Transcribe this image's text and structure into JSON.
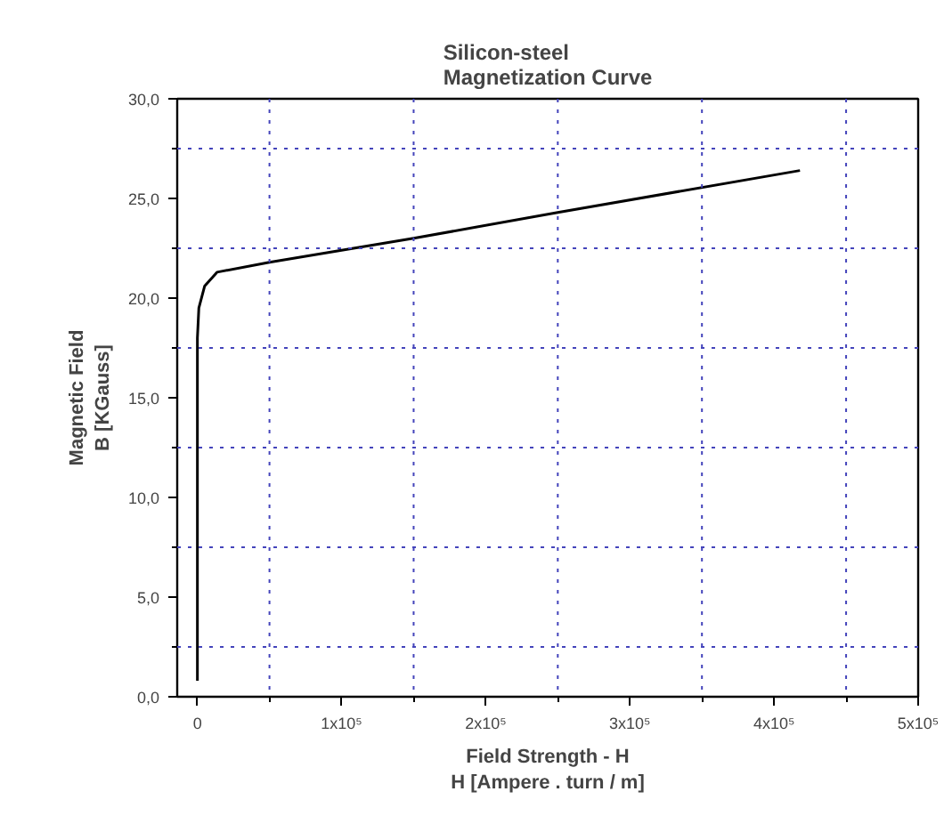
{
  "chart_data": {
    "type": "line",
    "title": "Silicon-steel\nMagnetization Curve",
    "xlabel": "Field Strength - H\nH [Ampere . turn / m]",
    "ylabel": "Magnetic Field\nB [KGauss]",
    "x": [
      0,
      0,
      0,
      1000,
      5000,
      13600,
      50000,
      150000,
      250000,
      418000
    ],
    "series": [
      {
        "color": "#000000",
        "values": [
          0.8,
          10,
          18,
          19.5,
          20.6,
          21.3,
          21.8,
          23.0,
          24.3,
          26.4
        ]
      }
    ],
    "xlim": [
      -14000,
      500000
    ],
    "ylim": [
      0,
      30
    ],
    "xticks": [
      0,
      {
        "value": 50000,
        "label": null
      },
      {
        "value": 100000,
        "label": "1x10⁵"
      },
      {
        "value": 150000,
        "label": null
      },
      {
        "value": 200000,
        "label": "2x10⁵"
      },
      {
        "value": 250000,
        "label": null
      },
      {
        "value": 300000,
        "label": "3x10⁵"
      },
      {
        "value": 350000,
        "label": null
      },
      {
        "value": 400000,
        "label": "4x10⁵"
      },
      {
        "value": 450000,
        "label": null
      },
      {
        "value": 500000,
        "label": "5x10⁵"
      }
    ],
    "yticks": [
      {
        "value": 0,
        "label": "0,0"
      },
      {
        "value": 2.5,
        "label": null
      },
      {
        "value": 5,
        "label": "5,0"
      },
      {
        "value": 7.5,
        "label": null
      },
      {
        "value": 10,
        "label": "10,0"
      },
      {
        "value": 12.5,
        "label": null
      },
      {
        "value": 15,
        "label": "15,0"
      },
      {
        "value": 17.5,
        "label": null
      },
      {
        "value": 20,
        "label": "20,0"
      },
      {
        "value": 22.5,
        "label": null
      },
      {
        "value": 25,
        "label": "25,0"
      },
      {
        "value": 27.5,
        "label": null
      },
      {
        "value": 30,
        "label": "30,0"
      }
    ],
    "ref_lines": [
      {
        "axis": "x",
        "value": 50000,
        "color": "#4444bb",
        "line_style": "dotted"
      },
      {
        "axis": "x",
        "value": 150000,
        "color": "#4444bb",
        "line_style": "dotted"
      },
      {
        "axis": "x",
        "value": 250000,
        "color": "#4444bb",
        "line_style": "dotted"
      },
      {
        "axis": "x",
        "value": 350000,
        "color": "#4444bb",
        "line_style": "dotted"
      },
      {
        "axis": "x",
        "value": 450000,
        "color": "#4444bb",
        "line_style": "dotted"
      },
      {
        "axis": "y",
        "value": 2.5,
        "color": "#4444bb",
        "line_style": "dotted"
      },
      {
        "axis": "y",
        "value": 7.5,
        "color": "#4444bb",
        "line_style": "dotted"
      },
      {
        "axis": "y",
        "value": 12.5,
        "color": "#4444bb",
        "line_style": "dotted"
      },
      {
        "axis": "y",
        "value": 17.5,
        "color": "#4444bb",
        "line_style": "dotted"
      },
      {
        "axis": "y",
        "value": 22.5,
        "color": "#4444bb",
        "line_style": "dotted"
      },
      {
        "axis": "y",
        "value": 27.5,
        "color": "#4444bb",
        "line_style": "dotted"
      }
    ],
    "grid": false,
    "marker": "none",
    "line_style": "solid"
  }
}
